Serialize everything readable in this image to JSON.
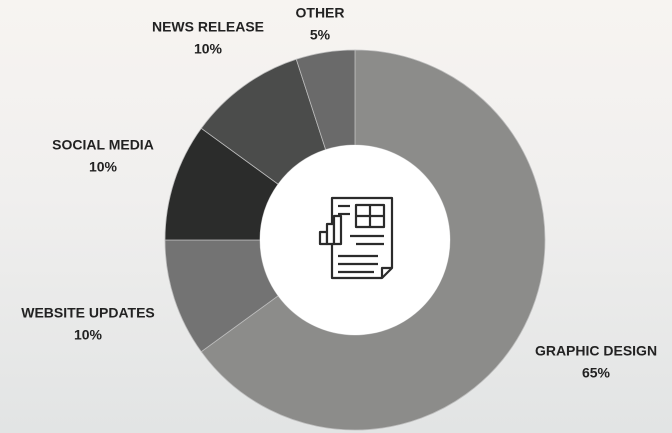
{
  "chart_data": {
    "type": "donut",
    "categories": [
      "GRAPHIC DESIGN",
      "WEBSITE UPDATES",
      "SOCIAL MEDIA",
      "NEWS RELEASE",
      "OTHER"
    ],
    "values": [
      65,
      10,
      10,
      10,
      5
    ],
    "value_labels": [
      "65%",
      "10%",
      "10%",
      "10%",
      "5%"
    ],
    "colors": [
      "#8c8c8a",
      "#737373",
      "#2b2c2b",
      "#4b4c4b",
      "#6a6a6a"
    ]
  }
}
